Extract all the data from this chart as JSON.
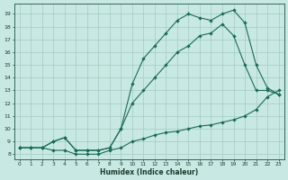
{
  "xlabel": "Humidex (Indice chaleur)",
  "bg_color": "#c8e8e4",
  "grid_color": "#a0ccbe",
  "line_color": "#1a6b58",
  "xlim_min": -0.5,
  "xlim_max": 23.5,
  "ylim_min": 7.6,
  "ylim_max": 19.8,
  "yticks": [
    8,
    9,
    10,
    11,
    12,
    13,
    14,
    15,
    16,
    17,
    18,
    19
  ],
  "xticks": [
    0,
    1,
    2,
    3,
    4,
    5,
    6,
    7,
    8,
    9,
    10,
    11,
    12,
    13,
    14,
    15,
    16,
    17,
    18,
    19,
    20,
    21,
    22,
    23
  ],
  "curve1_x": [
    0,
    1,
    2,
    3,
    4,
    5,
    6,
    7,
    8,
    9,
    10,
    11,
    12,
    13,
    14,
    15,
    16,
    17,
    18,
    19,
    20,
    21,
    22,
    23
  ],
  "curve1_y": [
    8.5,
    8.5,
    8.5,
    8.3,
    8.3,
    8.0,
    8.0,
    8.0,
    8.3,
    8.5,
    9.0,
    9.2,
    9.5,
    9.7,
    9.8,
    10.0,
    10.2,
    10.3,
    10.5,
    10.7,
    11.0,
    11.5,
    12.5,
    13.0
  ],
  "curve2_x": [
    0,
    1,
    2,
    3,
    4,
    5,
    6,
    7,
    8,
    9,
    10,
    11,
    12,
    13,
    14,
    15,
    16,
    17,
    18,
    19,
    20,
    21,
    22,
    23
  ],
  "curve2_y": [
    8.5,
    8.5,
    8.5,
    9.0,
    9.3,
    8.3,
    8.3,
    8.3,
    8.5,
    10.0,
    12.0,
    13.0,
    14.0,
    15.0,
    16.0,
    16.5,
    17.3,
    17.5,
    18.2,
    17.3,
    15.0,
    13.0,
    13.0,
    12.7
  ],
  "curve3_x": [
    0,
    1,
    2,
    3,
    4,
    5,
    6,
    7,
    8,
    9,
    10,
    11,
    12,
    13,
    14,
    15,
    16,
    17,
    18,
    19,
    20,
    21,
    22,
    23
  ],
  "curve3_y": [
    8.5,
    8.5,
    8.5,
    9.0,
    9.3,
    8.3,
    8.3,
    8.3,
    8.5,
    10.0,
    13.5,
    15.5,
    16.5,
    17.5,
    18.5,
    19.0,
    18.7,
    18.5,
    19.0,
    19.3,
    18.3,
    15.0,
    13.2,
    12.7
  ]
}
